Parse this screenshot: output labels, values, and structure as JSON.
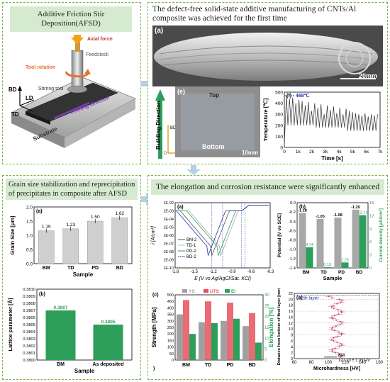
{
  "colors": {
    "border": "#7ab648",
    "header": "#d6ead0",
    "green": "#2e9e5b",
    "red": "#e8505b",
    "blue": "#2233aa",
    "gray": "#666666"
  },
  "afsd": {
    "title": "Additive Friction Stir Deposition(AFSD)",
    "labels": {
      "axial": "Axial force",
      "feedstock": "Feedstock",
      "rotation": "Tool rotation",
      "stirring": "Stirring tool",
      "bd": "BD",
      "ld": "LD",
      "td": "TD",
      "printing": "Printing direction",
      "substrate": "Substrate"
    }
  },
  "defect": {
    "title": "The  defect-free solid-state additive manufacturing of CNTs/Al composite was achieved for the first time",
    "panel_a": {
      "label": "(a)",
      "scale": "20mm"
    },
    "panel_e": {
      "label": "(e)",
      "top": "Top",
      "bottom": "Bottom",
      "scale": "10mm",
      "building_direction": "Building Direction",
      "bd": "BD",
      "pd": "PD",
      "td": "TD"
    },
    "panel_f": {
      "label": "(f)",
      "peak_label": "468℃",
      "ylabel": "Temperature [℃]",
      "xlabel": "Time [s]",
      "yticks": [
        "0",
        "100",
        "200",
        "300",
        "400",
        "500"
      ],
      "xticks": [
        "0",
        "1k",
        "2k",
        "3k",
        "4k",
        "5k",
        "6k",
        "7k"
      ]
    }
  },
  "grain": {
    "title": "Grain size stabilization and reprecipitation of precipitates in composite after AFSD",
    "chart_a": {
      "label": "(a)",
      "ylabel": "Grain Size [μm]",
      "xlabel": "Sample",
      "yticks": [
        "0.0",
        "0.5",
        "1.0",
        "1.5",
        "2.0"
      ]
    },
    "chart_b": {
      "label": "(b)",
      "ylabel": "Lattice parameter [Å]",
      "xlabel": "Sample",
      "yticks": [
        "0.3800",
        "0.3801",
        "0.3802",
        "0.3803",
        "0.3804",
        "0.3805",
        "0.3806",
        "0.3807",
        "0.3808",
        "0.3809",
        "0.3810"
      ]
    }
  },
  "elong": {
    "title": "The elongation and corrosion resistance were significantly enhanced",
    "chart_a": {
      "label": "(a)",
      "ylabel": "i [A/cm²]",
      "xlabel": "E (V vs Ag/AgCl/Sat. KCl)",
      "yticks": [
        "1E-02",
        "1E-03",
        "1E-04",
        "1E-05",
        "1E-06",
        "1E-07",
        "1E-08",
        "1E-09",
        "1E-10"
      ],
      "xticks": [
        "-1.8",
        "-1.5",
        "-1.2",
        "-0.9",
        "-0.6",
        "-0.3"
      ],
      "legend": [
        "BM-2",
        "TD-1",
        "PD-2",
        "BD-2"
      ]
    },
    "chart_b": {
      "label": "(b)",
      "ylabel_left": "Potential [V vs SCE]",
      "ylabel_right": "Current density [μA/cm²]",
      "xlabel": "Sample",
      "yticks_left": [
        "-1.4",
        "-1.2",
        "-1.0",
        "-0.8",
        "-0.6",
        "-0.4",
        "-0.2",
        "0.0"
      ],
      "yticks_right": [
        "0",
        "3",
        "6",
        "9",
        "12",
        "15"
      ]
    },
    "chart_c": {
      "label": "(c)",
      "ylabel_left": "Strength [MPa]",
      "ylabel_right": "Elongation [%]",
      "xlabel": ")",
      "yticks_left": [
        "0",
        "50",
        "100",
        "150",
        "200",
        "250",
        "300",
        "350",
        "400",
        "450",
        "500"
      ],
      "yticks_right": [
        "0",
        "5",
        "10",
        "15",
        "20",
        "25",
        "30"
      ],
      "legend": [
        "YS",
        "UTS",
        "El"
      ]
    },
    "chart_d": {
      "label": "(a)",
      "ylabel": "Distance from bottom of first layer [mm]",
      "xlabel": "Microhardness [HV]",
      "xticks": [
        "60",
        "80",
        "100",
        "120",
        "140",
        "160"
      ],
      "yticks": [
        "0",
        "2",
        "4",
        "6",
        "8",
        "10",
        "12",
        "14",
        "16",
        "18",
        "20",
        "22"
      ],
      "layer_label": "22th layer",
      "bm_label": "BM",
      "bm_value": "127.10 ± 1.39 HV"
    }
  },
  "chart_data": [
    {
      "type": "bar",
      "title": "",
      "xlabel": "Sample",
      "ylabel": "Grain Size [μm]",
      "categories": [
        "BM",
        "TD",
        "PD",
        "BD"
      ],
      "values": [
        1.16,
        1.23,
        1.5,
        1.62
      ],
      "value_labels": [
        "1.16",
        "1.23",
        "1.50",
        "1.62"
      ],
      "ylim": [
        0,
        2.0
      ]
    },
    {
      "type": "bar",
      "title": "",
      "xlabel": "Sample",
      "ylabel": "Lattice parameter [Å]",
      "categories": [
        "BM",
        "As deposited"
      ],
      "values": [
        0.3807,
        0.3805
      ],
      "value_labels": [
        "0.3807",
        "0.3805"
      ],
      "ylim": [
        0.38,
        0.381
      ]
    },
    {
      "type": "bar",
      "title": "",
      "xlabel": "Sample",
      "categories": [
        "BM",
        "TD",
        "PD",
        "BD"
      ],
      "series": [
        {
          "name": "Potential [V vs SCE]",
          "values": [
            -1.18,
            -1.05,
            -1.08,
            -1.25
          ],
          "labels": [
            "-1.18",
            "-1.05",
            "-1.08",
            "-1.25"
          ]
        },
        {
          "name": "Current density [μA/cm²]",
          "values": [
            4.74,
            0.19,
            1.25,
            12.13
          ],
          "labels": [
            "4.74",
            "0.19",
            "1.25",
            "12.13"
          ]
        }
      ]
    },
    {
      "type": "bar",
      "title": "",
      "xlabel": "",
      "categories": [
        "BM",
        "TD",
        "PD",
        "BD"
      ],
      "series": [
        {
          "name": "YS",
          "values": [
            350,
            290,
            300,
            260
          ]
        },
        {
          "name": "UTS",
          "values": [
            460,
            450,
            440,
            360
          ]
        },
        {
          "name": "El",
          "values": [
            12,
            17,
            19,
            8
          ]
        }
      ],
      "ylim": [
        0,
        500
      ],
      "y2lim": [
        0,
        30
      ]
    },
    {
      "type": "line",
      "title": "",
      "xlabel": "Time [s]",
      "ylabel": "Temperature [℃]",
      "peak": 468,
      "xlim": [
        0,
        7000
      ],
      "ylim": [
        0,
        500
      ]
    }
  ]
}
